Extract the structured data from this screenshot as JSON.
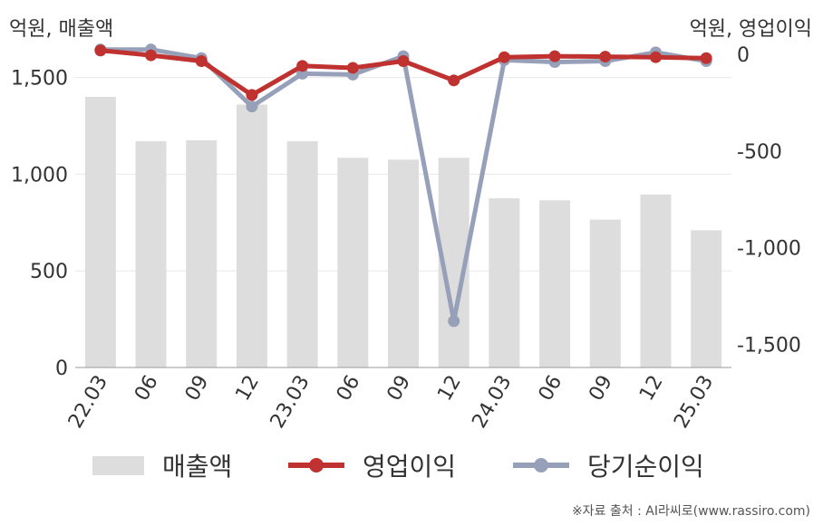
{
  "units": {
    "left": "억원, 매출액",
    "right": "억원, 영업이익"
  },
  "legend": [
    {
      "key": "revenue",
      "label": "매출액"
    },
    {
      "key": "op",
      "label": "영업이익"
    },
    {
      "key": "net",
      "label": "당기순이익"
    }
  ],
  "source": "※자료 출처 : AI라씨로(www.rassiro.com)",
  "colors": {
    "bar": "#dddddd",
    "op": "#c0322f",
    "net": "#96a0b9",
    "grid": "#e8e8e8",
    "axis": "#9a9a9a",
    "text": "#333333"
  },
  "chart_data": {
    "type": "bar",
    "categories": [
      "22.03",
      "06",
      "09",
      "12",
      "23.03",
      "06",
      "09",
      "12",
      "24.03",
      "06",
      "09",
      "12",
      "25.03"
    ],
    "series": [
      {
        "name": "매출액",
        "type": "bar",
        "axis": "left",
        "values": [
          1400,
          1170,
          1175,
          1360,
          1170,
          1085,
          1075,
          1085,
          875,
          865,
          765,
          895,
          710
        ]
      },
      {
        "name": "영업이익",
        "type": "line",
        "axis": "right",
        "values": [
          20,
          -5,
          -35,
          -210,
          -60,
          -70,
          -35,
          -135,
          -15,
          -10,
          -12,
          -15,
          -20
        ]
      },
      {
        "name": "당기순이익",
        "type": "line",
        "axis": "right",
        "values": [
          25,
          25,
          -20,
          -270,
          -100,
          -105,
          -10,
          -1380,
          -30,
          -40,
          -35,
          10,
          -35
        ]
      }
    ],
    "y_left": {
      "label": "억원, 매출액",
      "min": 0,
      "max": 1620,
      "ticks": [
        0,
        500,
        1000,
        1500
      ],
      "tick_labels": [
        "0",
        "500",
        "1,000",
        "1,500"
      ]
    },
    "y_right": {
      "label": "억원, 영업이익",
      "min": -1620,
      "max": 0,
      "ticks": [
        0,
        -500,
        -1000,
        -1500
      ],
      "tick_labels": [
        "0",
        "-500",
        "-1,000",
        "-1,500"
      ]
    },
    "grid": true,
    "legend_position": "bottom"
  }
}
